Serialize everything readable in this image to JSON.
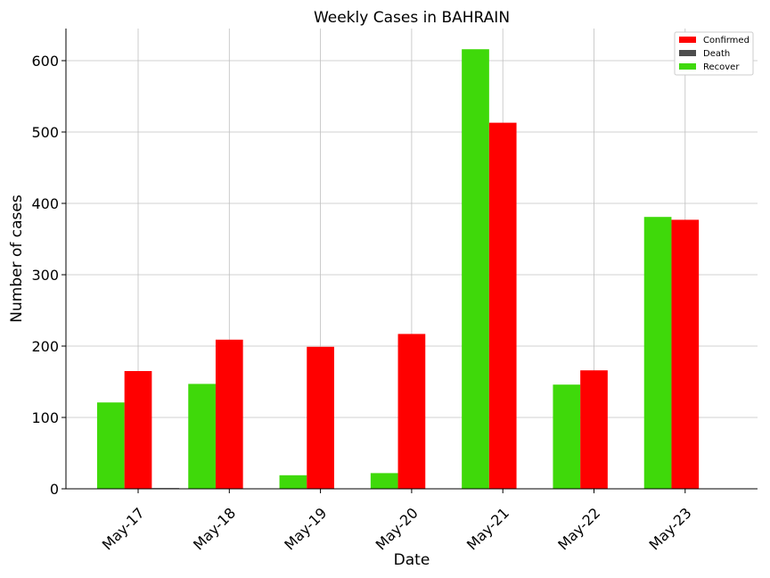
{
  "chart_data": {
    "type": "bar",
    "title": "Weekly Cases in BAHRAIN",
    "xlabel": "Date",
    "ylabel": "Number of cases",
    "categories": [
      "May-17",
      "May-18",
      "May-19",
      "May-20",
      "May-21",
      "May-22",
      "May-23"
    ],
    "series": [
      {
        "name": "Recover",
        "color": "#3fd90a",
        "values": [
          121,
          147,
          19,
          22,
          616,
          146,
          381
        ]
      },
      {
        "name": "Confirmed",
        "color": "#ff0000",
        "values": [
          165,
          209,
          199,
          217,
          513,
          166,
          377
        ]
      },
      {
        "name": "Death",
        "color": "#4d4d4d",
        "values": [
          1,
          0,
          0,
          0,
          0,
          0,
          0
        ]
      }
    ],
    "legend_order": [
      "Confirmed",
      "Death",
      "Recover"
    ],
    "ylim": [
      0,
      645
    ],
    "yticks": [
      0,
      100,
      200,
      300,
      400,
      500,
      600
    ],
    "grid": true,
    "legend_position": "top-right"
  }
}
